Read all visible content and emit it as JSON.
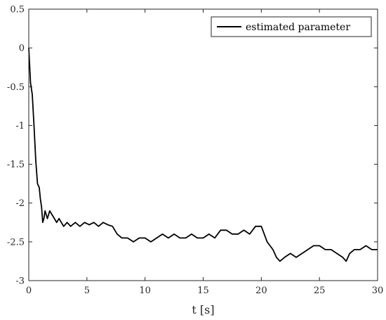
{
  "chart_data": {
    "type": "line",
    "title": "",
    "xlabel": "t [s]",
    "ylabel": "",
    "xlim": [
      0,
      30
    ],
    "ylim": [
      -3,
      0.5
    ],
    "xticks": [
      0,
      5,
      10,
      15,
      20,
      25,
      30
    ],
    "xtick_labels": [
      "0",
      "5",
      "10",
      "15",
      "20",
      "25",
      "30"
    ],
    "yticks": [
      0.5,
      0,
      -0.5,
      -1,
      -1.5,
      -2,
      -2.5,
      -3
    ],
    "ytick_labels": [
      "0.5",
      "0",
      "-0.5",
      "-1",
      "-1.5",
      "-2",
      "-2.5",
      "-3"
    ],
    "grid": false,
    "legend": {
      "position": "top-right",
      "entries": [
        "estimated parameter"
      ]
    },
    "series": [
      {
        "name": "estimated parameter",
        "color": "#000000",
        "x": [
          0,
          0.15,
          0.3,
          0.45,
          0.6,
          0.75,
          0.9,
          1.0,
          1.1,
          1.2,
          1.3,
          1.4,
          1.5,
          1.6,
          1.8,
          2.0,
          2.2,
          2.4,
          2.6,
          2.8,
          3.0,
          3.3,
          3.6,
          4.0,
          4.4,
          4.8,
          5.2,
          5.6,
          6.0,
          6.4,
          6.8,
          7.2,
          7.6,
          8.0,
          8.5,
          9.0,
          9.5,
          10.0,
          10.5,
          11.0,
          11.5,
          12.0,
          12.5,
          13.0,
          13.5,
          14.0,
          14.5,
          15.0,
          15.5,
          16.0,
          16.5,
          17.0,
          17.5,
          18.0,
          18.5,
          19.0,
          19.5,
          20.0,
          20.5,
          21.0,
          21.3,
          21.6,
          22.0,
          22.5,
          23.0,
          23.5,
          24.0,
          24.5,
          25.0,
          25.5,
          26.0,
          26.5,
          27.0,
          27.3,
          27.6,
          28.0,
          28.5,
          29.0,
          29.5,
          30.0
        ],
        "y": [
          0.0,
          -0.45,
          -0.6,
          -1.0,
          -1.45,
          -1.75,
          -1.8,
          -1.95,
          -2.05,
          -2.25,
          -2.2,
          -2.1,
          -2.15,
          -2.2,
          -2.1,
          -2.15,
          -2.2,
          -2.25,
          -2.2,
          -2.25,
          -2.3,
          -2.25,
          -2.3,
          -2.25,
          -2.3,
          -2.25,
          -2.28,
          -2.25,
          -2.3,
          -2.25,
          -2.28,
          -2.3,
          -2.4,
          -2.45,
          -2.45,
          -2.5,
          -2.45,
          -2.45,
          -2.5,
          -2.45,
          -2.4,
          -2.45,
          -2.4,
          -2.45,
          -2.45,
          -2.4,
          -2.45,
          -2.45,
          -2.4,
          -2.45,
          -2.35,
          -2.35,
          -2.4,
          -2.4,
          -2.35,
          -2.4,
          -2.3,
          -2.3,
          -2.5,
          -2.6,
          -2.7,
          -2.75,
          -2.7,
          -2.65,
          -2.7,
          -2.65,
          -2.6,
          -2.55,
          -2.55,
          -2.6,
          -2.6,
          -2.65,
          -2.7,
          -2.75,
          -2.65,
          -2.6,
          -2.6,
          -2.55,
          -2.6,
          -2.6
        ]
      }
    ]
  }
}
